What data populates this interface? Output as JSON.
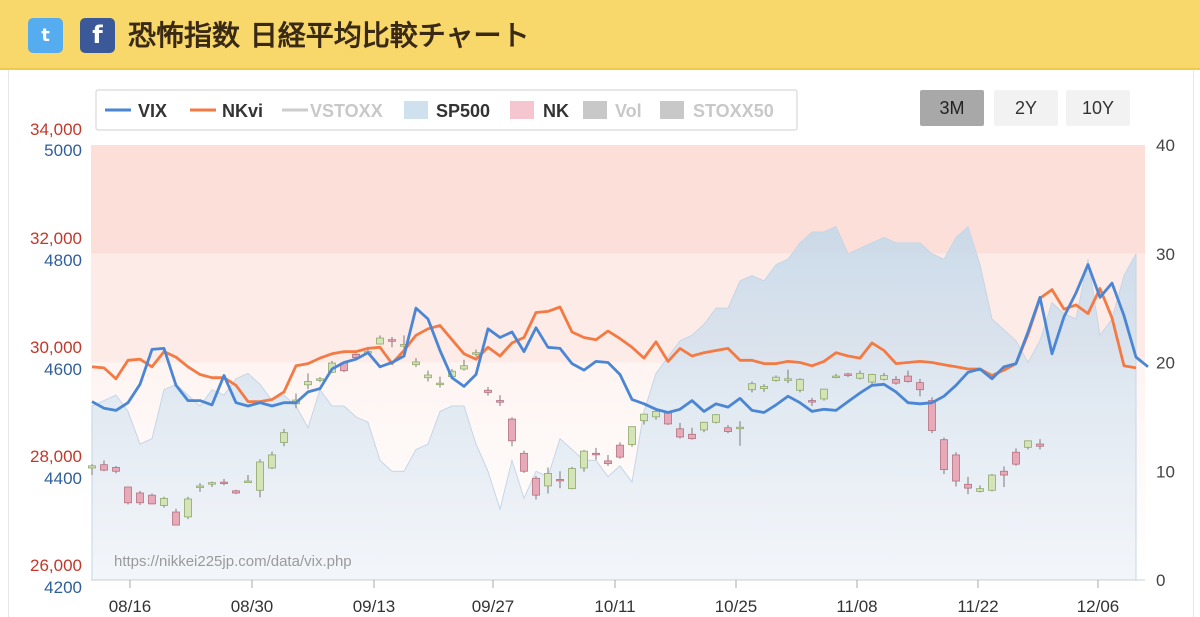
{
  "header": {
    "title": "恐怖指数 日経平均比較チャート",
    "twitter_glyph": "t",
    "facebook_glyph": "f"
  },
  "range_buttons": [
    {
      "label": "3M",
      "active": true
    },
    {
      "label": "2Y",
      "active": false
    },
    {
      "label": "10Y",
      "active": false
    }
  ],
  "watermark": "https://nikkei225jp.com/data/vix.php",
  "colors": {
    "vix": "#4a86d4",
    "nkvi": "#f47a44",
    "vstoxx": "#c8c8c8",
    "sp500": "#cfe0ee",
    "nk_up": "#d4e4b6",
    "nk_down": "#e8aab8",
    "nk_label": "#c0392b",
    "sp_label": "#2f5f9a",
    "band_dark": "#fcd9d2",
    "band_light": "#fde8e4"
  },
  "chart_data": {
    "type": "line",
    "legend": [
      {
        "name": "VIX",
        "style": "line",
        "color": "#4a86d4",
        "enabled": true
      },
      {
        "name": "NKvi",
        "style": "line",
        "color": "#f47a44",
        "enabled": true
      },
      {
        "name": "VSTOXX",
        "style": "line",
        "color": "#c8c8c8",
        "enabled": false
      },
      {
        "name": "SP500",
        "style": "area",
        "color": "#cfe0ee",
        "enabled": true
      },
      {
        "name": "NK",
        "style": "candle",
        "color": "#f5c6cf",
        "enabled": true
      },
      {
        "name": "Vol",
        "style": "bar",
        "color": "#c8c8c8",
        "enabled": false
      },
      {
        "name": "STOXX50",
        "style": "area",
        "color": "#c8c8c8",
        "enabled": false
      }
    ],
    "x_ticks": [
      "08/16",
      "08/30",
      "09/13",
      "09/27",
      "10/11",
      "10/25",
      "11/08",
      "11/22",
      "12/06"
    ],
    "axes": {
      "nk": {
        "ticks": [
          "34,000",
          "32,000",
          "30,000",
          "28,000",
          "26,000"
        ],
        "range": [
          26000,
          34000
        ]
      },
      "sp500": {
        "ticks": [
          "5000",
          "4800",
          "4600",
          "4400",
          "4200"
        ],
        "range": [
          4200,
          5000
        ]
      },
      "vol_index": {
        "ticks": [
          "40",
          "30",
          "20",
          "10",
          "0"
        ],
        "range": [
          0,
          40
        ]
      }
    },
    "bands": [
      {
        "from": 30,
        "to": 40,
        "level": "high"
      },
      {
        "from": 20,
        "to": 30,
        "level": "medium"
      }
    ],
    "series": [
      {
        "name": "VIX",
        "axis": "vol_index",
        "values": [
          16.4,
          15.8,
          15.6,
          16.3,
          18.0,
          21.2,
          21.3,
          17.9,
          16.5,
          16.5,
          16.1,
          18.8,
          16.3,
          16.0,
          16.3,
          16.0,
          16.3,
          16.3,
          17.3,
          17.6,
          19.4,
          20.0,
          20.3,
          20.9,
          19.6,
          20.0,
          20.6,
          25.0,
          24.0,
          21.1,
          18.6,
          17.8,
          18.9,
          23.1,
          22.3,
          22.8,
          21.0,
          23.2,
          21.4,
          21.3,
          19.9,
          19.3,
          20.1,
          20.0,
          18.9,
          16.6,
          16.2,
          15.7,
          15.4,
          15.7,
          16.5,
          15.5,
          16.2,
          15.9,
          16.7,
          15.6,
          15.4,
          16.1,
          16.9,
          16.3,
          15.5,
          15.7,
          15.6,
          16.4,
          17.2,
          17.9,
          18.0,
          17.3,
          16.3,
          16.2,
          16.3,
          16.9,
          17.9,
          19.1,
          19.4,
          18.5,
          19.6,
          19.9,
          22.8,
          26.0,
          20.8,
          24.2,
          26.4,
          29.0,
          26.0,
          27.3,
          24.3,
          20.5,
          19.6
        ]
      },
      {
        "name": "NKvi",
        "axis": "vol_index",
        "values": [
          19.6,
          19.5,
          18.5,
          20.2,
          20.3,
          19.6,
          21.0,
          20.5,
          19.6,
          18.9,
          18.6,
          18.6,
          17.9,
          16.4,
          16.4,
          16.6,
          17.3,
          19.7,
          19.9,
          20.4,
          20.8,
          21.0,
          21.0,
          21.3,
          21.4,
          19.9,
          21.1,
          22.5,
          23.1,
          23.4,
          22.1,
          20.8,
          20.3,
          21.4,
          20.6,
          21.8,
          22.3,
          24.6,
          24.7,
          25.1,
          22.8,
          22.3,
          22.1,
          22.9,
          22.2,
          21.4,
          20.4,
          21.9,
          20.1,
          21.3,
          20.6,
          20.9,
          21.1,
          21.3,
          20.2,
          20.2,
          19.9,
          19.9,
          20.1,
          20.0,
          19.7,
          20.1,
          20.9,
          20.6,
          20.4,
          21.8,
          21.1,
          19.9,
          20.0,
          20.1,
          20.0,
          19.8,
          19.6,
          19.4,
          19.4,
          18.8,
          19.3,
          19.9,
          22.6,
          25.9,
          26.7,
          24.9,
          25.3,
          24.5,
          26.8,
          24.1,
          19.7,
          19.5
        ]
      },
      {
        "name": "SP500",
        "axis": "sp500",
        "values": [
          4520,
          4530,
          4540,
          4510,
          4450,
          4460,
          4550,
          4560,
          4540,
          4520,
          4550,
          4540,
          4570,
          4580,
          4560,
          4530,
          4540,
          4520,
          4480,
          4550,
          4520,
          4520,
          4500,
          4490,
          4420,
          4400,
          4400,
          4440,
          4450,
          4510,
          4520,
          4520,
          4450,
          4400,
          4330,
          4420,
          4350,
          4400,
          4390,
          4460,
          4440,
          4420,
          4420,
          4390,
          4410,
          4380,
          4510,
          4580,
          4610,
          4640,
          4650,
          4670,
          4700,
          4700,
          4750,
          4760,
          4750,
          4780,
          4790,
          4820,
          4840,
          4840,
          4850,
          4800,
          4810,
          4820,
          4830,
          4820,
          4820,
          4820,
          4800,
          4790,
          4830,
          4850,
          4780,
          4680,
          4660,
          4640,
          4600,
          4640,
          4710,
          4690,
          4680,
          4790,
          4650,
          4680,
          4760,
          4800
        ]
      }
    ],
    "ohlc": {
      "axis": "nk",
      "values": [
        [
          28060,
          28130,
          27930,
          28100
        ],
        [
          28120,
          28200,
          28000,
          28020
        ],
        [
          28070,
          28100,
          27960,
          28000
        ],
        [
          27710,
          27720,
          27390,
          27420
        ],
        [
          27600,
          27640,
          27380,
          27420
        ],
        [
          27560,
          27590,
          27390,
          27400
        ],
        [
          27370,
          27530,
          27330,
          27500
        ],
        [
          27250,
          27310,
          27000,
          27010
        ],
        [
          27160,
          27530,
          27120,
          27490
        ],
        [
          27700,
          27780,
          27620,
          27730
        ],
        [
          27780,
          27810,
          27710,
          27790
        ],
        [
          27800,
          27860,
          27740,
          27790
        ],
        [
          27640,
          27660,
          27580,
          27600
        ],
        [
          27820,
          27930,
          27810,
          27820
        ],
        [
          27650,
          28220,
          27520,
          28170
        ],
        [
          28060,
          28360,
          28040,
          28300
        ],
        [
          28530,
          28780,
          28460,
          28710
        ],
        [
          29240,
          29430,
          29160,
          29310
        ],
        [
          29590,
          29800,
          29510,
          29650
        ],
        [
          29690,
          29730,
          29640,
          29700
        ],
        [
          29820,
          30030,
          29810,
          29990
        ],
        [
          29990,
          30000,
          29820,
          29850
        ],
        [
          30150,
          30170,
          30040,
          30090
        ],
        [
          30190,
          30290,
          30160,
          30200
        ],
        [
          30340,
          30500,
          30330,
          30450
        ],
        [
          30420,
          30470,
          30280,
          30390
        ],
        [
          30300,
          30500,
          30240,
          30330
        ],
        [
          29960,
          30080,
          29920,
          30010
        ],
        [
          29720,
          29850,
          29650,
          29770
        ],
        [
          29600,
          29740,
          29540,
          29620
        ],
        [
          29740,
          29880,
          29690,
          29840
        ],
        [
          29880,
          30050,
          29850,
          29940
        ],
        [
          30180,
          30240,
          30110,
          30180
        ],
        [
          29490,
          29550,
          29390,
          29450
        ],
        [
          29300,
          29400,
          29200,
          29270
        ],
        [
          28960,
          28990,
          28460,
          28560
        ],
        [
          28330,
          28380,
          27970,
          28000
        ],
        [
          27870,
          27910,
          27480,
          27560
        ],
        [
          27730,
          28070,
          27590,
          27960
        ],
        [
          27850,
          28000,
          27690,
          27830
        ],
        [
          27680,
          28080,
          27670,
          28050
        ],
        [
          28060,
          28390,
          27990,
          28370
        ],
        [
          28330,
          28430,
          28210,
          28320
        ],
        [
          28190,
          28300,
          28100,
          28140
        ],
        [
          28480,
          28530,
          28230,
          28260
        ],
        [
          28490,
          28810,
          28450,
          28820
        ],
        [
          28930,
          29050,
          28860,
          29050
        ],
        [
          29000,
          29130,
          28950,
          29100
        ],
        [
          29070,
          29090,
          28850,
          28870
        ],
        [
          28780,
          28890,
          28600,
          28630
        ],
        [
          28680,
          28800,
          28580,
          28600
        ],
        [
          28760,
          28910,
          28720,
          28900
        ],
        [
          28900,
          29050,
          28880,
          29040
        ],
        [
          28800,
          28850,
          28700,
          28730
        ],
        [
          28790,
          28920,
          28470,
          28810
        ],
        [
          29500,
          29650,
          29450,
          29610
        ],
        [
          29520,
          29600,
          29460,
          29560
        ],
        [
          29670,
          29760,
          29650,
          29730
        ],
        [
          29690,
          29870,
          29620,
          29700
        ],
        [
          29490,
          29710,
          29450,
          29690
        ],
        [
          29300,
          29350,
          29200,
          29280
        ],
        [
          29330,
          29520,
          29300,
          29510
        ],
        [
          29740,
          29790,
          29710,
          29750
        ],
        [
          29790,
          29810,
          29730,
          29770
        ],
        [
          29710,
          29850,
          29690,
          29800
        ],
        [
          29640,
          29790,
          29610,
          29780
        ],
        [
          29690,
          29810,
          29670,
          29760
        ],
        [
          29690,
          29750,
          29590,
          29620
        ],
        [
          29750,
          29850,
          29630,
          29650
        ],
        [
          29630,
          29700,
          29380,
          29500
        ],
        [
          29300,
          29360,
          28700,
          28750
        ],
        [
          28580,
          28620,
          27950,
          28030
        ],
        [
          28300,
          28350,
          27720,
          27820
        ],
        [
          27760,
          27900,
          27580,
          27690
        ],
        [
          27630,
          27740,
          27610,
          27680
        ],
        [
          27650,
          27950,
          27630,
          27930
        ],
        [
          28000,
          28090,
          27710,
          27930
        ],
        [
          28350,
          28420,
          28100,
          28130
        ],
        [
          28440,
          28550,
          28400,
          28560
        ],
        [
          28500,
          28590,
          28400,
          28460
        ]
      ]
    }
  }
}
